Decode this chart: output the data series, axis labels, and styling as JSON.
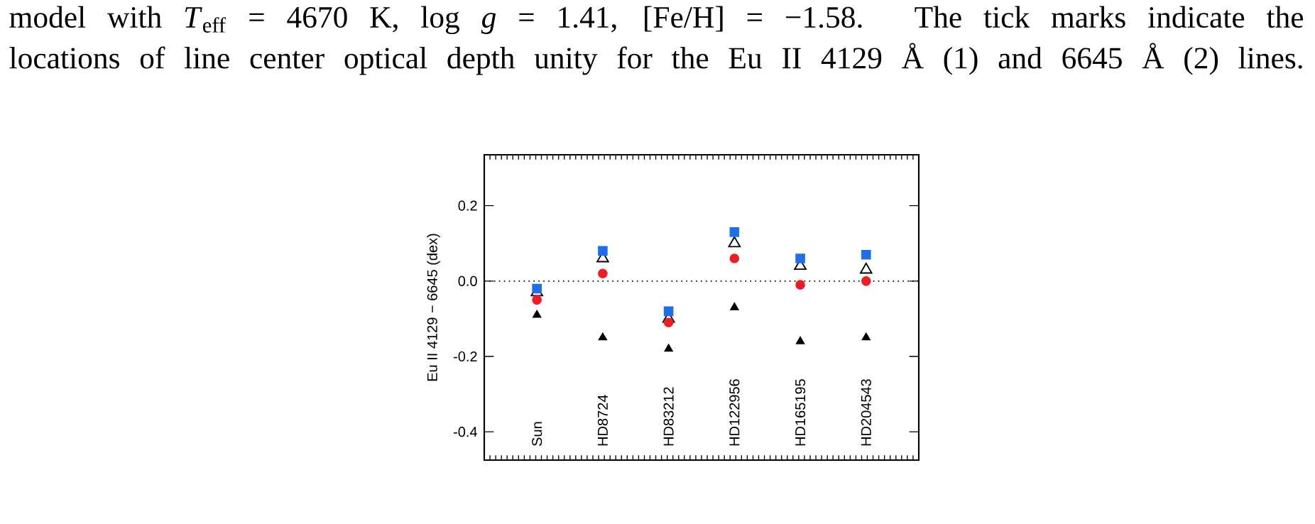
{
  "chart_data": {
    "type": "scatter",
    "ylabel": "Eu II 4129 − 6645 (dex)",
    "annotations": [
      "model with *T*$_{eff}$ = 4670 K, log *g* = 1.41, [Fe/H] = −1.58. The tick marks indicate the",
      "locations of line center optical depth unity for the Eu II 4129 Å (1) and 6645 Å (2) lines."
    ],
    "categories": [
      "Sun",
      "HD8724",
      "HD83212",
      "HD122956",
      "HD165195",
      "HD204543"
    ],
    "series": [
      {
        "color": "#000000",
        "marker": "triangle",
        "values": [
          -0.09,
          -0.15,
          -0.18,
          -0.07,
          -0.16,
          -0.15
        ]
      },
      {
        "color": "#000000",
        "marker": "triangle",
        "values": [
          -0.03,
          0.06,
          -0.1,
          0.1,
          0.04,
          0.03
        ]
      },
      {
        "color": "#ee1c25",
        "marker": "circle",
        "values": [
          -0.05,
          0.02,
          -0.11,
          0.06,
          -0.01,
          0.0
        ]
      },
      {
        "color": "#1f6fe8",
        "marker": "square",
        "values": [
          -0.02,
          0.08,
          -0.08,
          0.13,
          0.06,
          0.07
        ]
      }
    ],
    "ylim": [
      -0.475,
      0.335
    ],
    "yticks": [
      {
        "value": -0.4,
        "label": "-0.4"
      },
      {
        "value": -0.2,
        "label": "-0.2"
      },
      {
        "value": 0.0,
        "label": "0.0"
      },
      {
        "value": 0.2,
        "label": "0.2"
      }
    ],
    "ref_lines": [
      {
        "axis": "y",
        "value": 0,
        "color": "#000000",
        "line_style": "dotted"
      }
    ],
    "grid": false,
    "tick_labels": "y"
  }
}
